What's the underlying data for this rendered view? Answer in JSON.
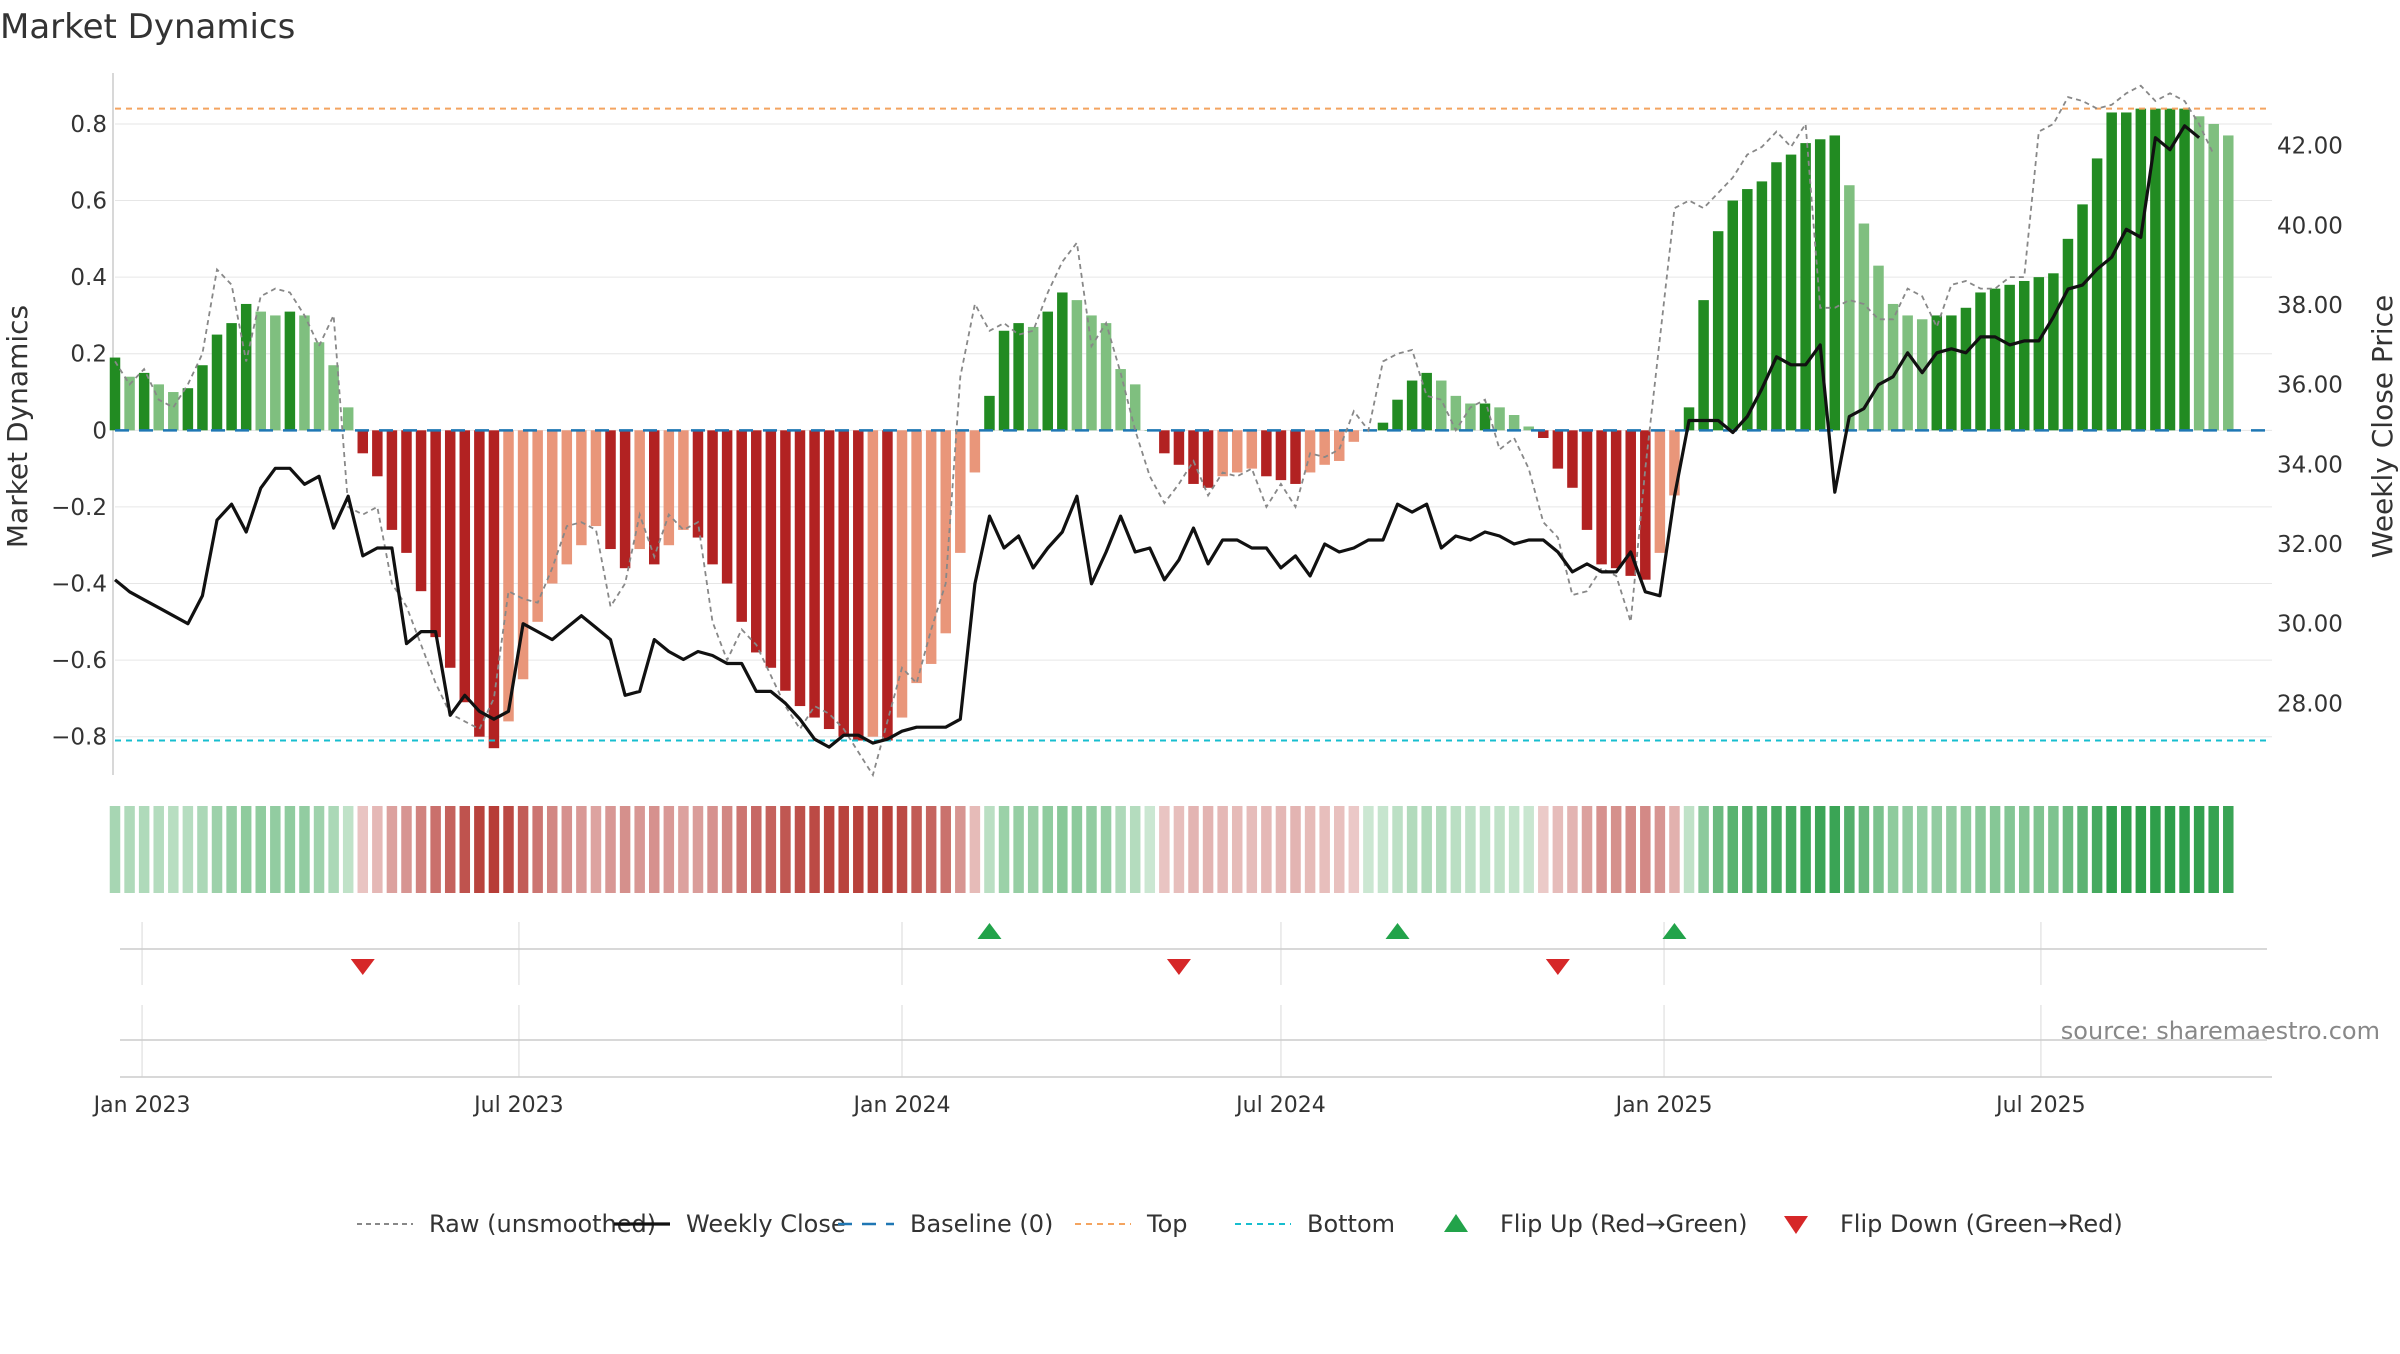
{
  "chart_data": {
    "type": "bar",
    "title": "Market Dynamics",
    "source_note": "source: sharemaestro.com",
    "y_left": {
      "label": "Market Dynamics",
      "lim": [
        -0.9,
        0.92
      ],
      "ticks": [
        0.8,
        0.6,
        0.4,
        0.2,
        0,
        -0.2,
        -0.4,
        -0.6,
        -0.8
      ],
      "tick_labels": [
        "0.8",
        "0.6",
        "0.4",
        "0.2",
        "0",
        "−0.2",
        "−0.4",
        "−0.6",
        "−0.8"
      ]
    },
    "y_right": {
      "label": "Weekly Close Price",
      "lim": [
        26.2,
        43.7
      ],
      "ticks": [
        42,
        40,
        38,
        36,
        34,
        32,
        30,
        28
      ],
      "tick_labels": [
        "42.00",
        "40.00",
        "38.00",
        "36.00",
        "34.00",
        "32.00",
        "30.00",
        "28.00"
      ]
    },
    "x_axis": {
      "type": "date",
      "start": "2022-12-19",
      "end": "2025-10-20",
      "ticks": [
        "2023-01-01",
        "2023-07-01",
        "2024-01-01",
        "2024-07-01",
        "2025-01-01",
        "2025-07-01"
      ],
      "tick_labels": [
        "Jan 2023",
        "Jul 2023",
        "Jan 2024",
        "Jul 2024",
        "Jan 2025",
        "Jul 2025"
      ]
    },
    "grid": true,
    "reference_lines": {
      "top": 0.84,
      "bottom": -0.81,
      "baseline": 0
    },
    "first_week": "2022-12-19",
    "weekly_interval_days": 7,
    "series": [
      {
        "name": "Market Dynamics",
        "kind": "bar",
        "values": [
          0.19,
          0.14,
          0.15,
          0.12,
          0.1,
          0.11,
          0.17,
          0.25,
          0.28,
          0.33,
          0.31,
          0.3,
          0.31,
          0.3,
          0.23,
          0.17,
          0.06,
          -0.06,
          -0.12,
          -0.26,
          -0.32,
          -0.42,
          -0.54,
          -0.62,
          -0.71,
          -0.8,
          -0.83,
          -0.76,
          -0.65,
          -0.5,
          -0.4,
          -0.35,
          -0.3,
          -0.25,
          -0.31,
          -0.36,
          -0.31,
          -0.35,
          -0.3,
          -0.26,
          -0.28,
          -0.35,
          -0.4,
          -0.5,
          -0.58,
          -0.62,
          -0.68,
          -0.72,
          -0.75,
          -0.78,
          -0.8,
          -0.81,
          -0.8,
          -0.81,
          -0.75,
          -0.66,
          -0.61,
          -0.53,
          -0.32,
          -0.11,
          0.09,
          0.26,
          0.28,
          0.27,
          0.31,
          0.36,
          0.34,
          0.3,
          0.28,
          0.16,
          0.12,
          0.0,
          -0.06,
          -0.09,
          -0.14,
          -0.15,
          -0.12,
          -0.11,
          -0.1,
          -0.12,
          -0.13,
          -0.14,
          -0.11,
          -0.09,
          -0.08,
          -0.03,
          0.0,
          0.02,
          0.08,
          0.13,
          0.15,
          0.13,
          0.09,
          0.07,
          0.07,
          0.06,
          0.04,
          0.01,
          -0.02,
          -0.1,
          -0.15,
          -0.26,
          -0.35,
          -0.36,
          -0.38,
          -0.39,
          -0.32,
          -0.17,
          0.06,
          0.34,
          0.52,
          0.6,
          0.63,
          0.65,
          0.7,
          0.72,
          0.75,
          0.76,
          0.77,
          0.64,
          0.54,
          0.43,
          0.33,
          0.3,
          0.29,
          0.3,
          0.3,
          0.32,
          0.36,
          0.37,
          0.38,
          0.39,
          0.4,
          0.41,
          0.5,
          0.59,
          0.71,
          0.83,
          0.83,
          0.84,
          0.84,
          0.84,
          0.84,
          0.82,
          0.8,
          0.77
        ]
      },
      {
        "name": "Raw (unsmoothed)",
        "kind": "line",
        "values": [
          0.18,
          0.12,
          0.16,
          0.08,
          0.06,
          0.12,
          0.2,
          0.42,
          0.38,
          0.18,
          0.35,
          0.37,
          0.36,
          0.3,
          0.22,
          0.3,
          -0.2,
          -0.22,
          -0.2,
          -0.4,
          -0.46,
          -0.56,
          -0.66,
          -0.74,
          -0.76,
          -0.78,
          -0.7,
          -0.42,
          -0.44,
          -0.45,
          -0.36,
          -0.25,
          -0.24,
          -0.26,
          -0.46,
          -0.4,
          -0.22,
          -0.33,
          -0.22,
          -0.26,
          -0.24,
          -0.5,
          -0.6,
          -0.52,
          -0.56,
          -0.64,
          -0.72,
          -0.78,
          -0.72,
          -0.74,
          -0.78,
          -0.84,
          -0.9,
          -0.76,
          -0.62,
          -0.66,
          -0.52,
          -0.4,
          0.14,
          0.33,
          0.26,
          0.28,
          0.25,
          0.26,
          0.36,
          0.44,
          0.49,
          0.22,
          0.28,
          0.15,
          0.0,
          -0.12,
          -0.19,
          -0.14,
          -0.08,
          -0.17,
          -0.11,
          -0.12,
          -0.1,
          -0.2,
          -0.14,
          -0.2,
          -0.06,
          -0.07,
          -0.05,
          0.05,
          0.0,
          0.18,
          0.2,
          0.21,
          0.09,
          0.08,
          0.0,
          0.06,
          0.08,
          -0.05,
          -0.02,
          -0.1,
          -0.24,
          -0.28,
          -0.43,
          -0.42,
          -0.36,
          -0.38,
          -0.5,
          -0.1,
          0.24,
          0.58,
          0.6,
          0.58,
          0.62,
          0.66,
          0.72,
          0.74,
          0.78,
          0.74,
          0.8,
          0.32,
          0.32,
          0.34,
          0.33,
          0.29,
          0.29,
          0.37,
          0.35,
          0.27,
          0.38,
          0.39,
          0.37,
          0.37,
          0.4,
          0.4,
          0.78,
          0.8,
          0.87,
          0.86,
          0.84,
          0.85,
          0.88,
          0.9,
          0.86,
          0.88,
          0.86,
          0.8,
          0.72
        ]
      },
      {
        "name": "Weekly Close",
        "kind": "line",
        "axis": "right",
        "values": [
          31.1,
          30.8,
          30.6,
          30.4,
          30.2,
          30.0,
          30.7,
          32.6,
          33.0,
          32.3,
          33.4,
          33.9,
          33.9,
          33.5,
          33.7,
          32.4,
          33.2,
          31.7,
          31.9,
          31.9,
          29.5,
          29.8,
          29.8,
          27.7,
          28.2,
          27.8,
          27.6,
          27.8,
          30.0,
          29.8,
          29.6,
          29.9,
          30.2,
          29.9,
          29.6,
          28.2,
          28.3,
          29.6,
          29.3,
          29.1,
          29.3,
          29.2,
          29.0,
          29.0,
          28.3,
          28.3,
          28.0,
          27.6,
          27.1,
          26.9,
          27.2,
          27.2,
          27.0,
          27.1,
          27.3,
          27.4,
          27.4,
          27.4,
          27.6,
          31.0,
          32.7,
          31.9,
          32.2,
          31.4,
          31.9,
          32.3,
          33.2,
          31.0,
          31.8,
          32.7,
          31.8,
          31.9,
          31.1,
          31.6,
          32.4,
          31.5,
          32.1,
          32.1,
          31.9,
          31.9,
          31.4,
          31.7,
          31.2,
          32.0,
          31.8,
          31.9,
          32.1,
          32.1,
          33.0,
          32.8,
          33.0,
          31.9,
          32.2,
          32.1,
          32.3,
          32.2,
          32.0,
          32.1,
          32.1,
          31.8,
          31.3,
          31.5,
          31.3,
          31.3,
          31.8,
          30.8,
          30.7,
          33.2,
          35.1,
          35.1,
          35.1,
          34.8,
          35.2,
          35.9,
          36.7,
          36.5,
          36.5,
          37.0,
          33.3,
          35.2,
          35.4,
          36.0,
          36.2,
          36.8,
          36.3,
          36.8,
          36.9,
          36.8,
          37.2,
          37.2,
          37.0,
          37.1,
          37.1,
          37.7,
          38.4,
          38.5,
          38.9,
          39.2,
          39.9,
          39.7,
          42.2,
          41.9,
          42.5,
          42.2
        ]
      },
      {
        "name": "Baseline (0)",
        "kind": "hline",
        "value": 0
      },
      {
        "name": "Top",
        "kind": "hline",
        "value": 0.84
      },
      {
        "name": "Bottom",
        "kind": "hline",
        "value": -0.81
      },
      {
        "name": "Flip Up (Red→Green)",
        "kind": "marker",
        "dates": [
          "2024-02-12",
          "2024-08-26",
          "2025-01-06"
        ]
      },
      {
        "name": "Flip Down (Green→Red)",
        "kind": "marker",
        "dates": [
          "2023-04-17",
          "2024-05-13",
          "2024-11-11"
        ]
      }
    ],
    "legend": {
      "placement": "bottom-center",
      "entries": [
        "Raw (unsmoothed)",
        "Weekly Close",
        "Baseline (0)",
        "Top",
        "Bottom",
        "Flip Up (Red→Green)",
        "Flip Down (Green→Red)"
      ]
    }
  },
  "colors": {
    "strong_green": "#228b22",
    "light_green": "#7fbf7f",
    "strong_red": "#b22222",
    "light_red": "#e9967a",
    "flip_up": "#22a34a",
    "flip_down": "#d62728",
    "raw_line": "#888888",
    "close_line": "#111111",
    "baseline": "#1f77b4",
    "top_line": "#f4a460",
    "bottom_line": "#17becf",
    "grid": "#e6e6e6",
    "axis_text": "#333333",
    "source_text": "#888888"
  }
}
